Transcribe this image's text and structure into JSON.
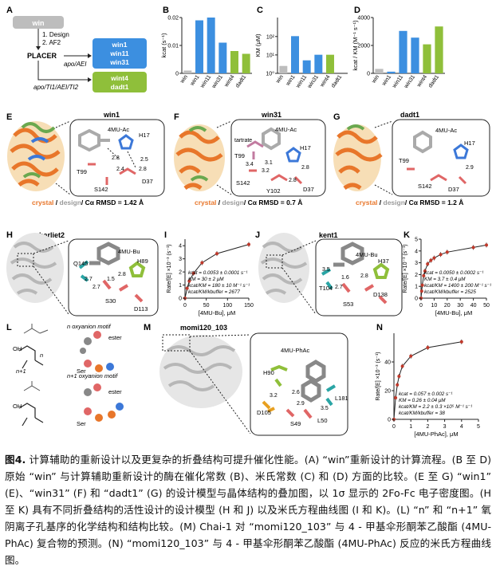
{
  "panels": {
    "A": {
      "letter": "A",
      "win": "win",
      "step1": "1. Design",
      "step2": "2. AF2",
      "placer": "PLACER",
      "apo1": "apo/AEI",
      "apo2": "apo/TI1/AEI/TI2",
      "group1": [
        "win1",
        "win11",
        "win31"
      ],
      "group2": [
        "wint4",
        "dadt1"
      ]
    },
    "B": {
      "letter": "B"
    },
    "C": {
      "letter": "C"
    },
    "D": {
      "letter": "D"
    },
    "E": {
      "letter": "E",
      "title": "win1",
      "rmsd": "/ Cα RMSD = 1.42 Å",
      "labels": [
        "4MU-Ac",
        "H17",
        "T99",
        "S142",
        "D37",
        "2.8",
        "2.5",
        "2.4",
        "2.8"
      ]
    },
    "F": {
      "letter": "F",
      "title": "win31",
      "rmsd": "/ Cα RMSD = 0.7 Å",
      "labels": [
        "4MU-Ac",
        "tartrate",
        "H17",
        "T99",
        "3.4",
        "3.1",
        "3.2",
        "2.8",
        "S142",
        "Y102",
        "D37",
        "2.8"
      ]
    },
    "G": {
      "letter": "G",
      "title": "dadt1",
      "rmsd": "/ Cα RMSD = 1.2 Å",
      "labels": [
        "4MU-Ac",
        "H17",
        "T99",
        "S142",
        "D37",
        "2.9"
      ]
    },
    "H": {
      "letter": "H",
      "title": "charliet2",
      "labels": [
        "4MU-Bu",
        "Q145",
        "H89",
        "S30",
        "D113",
        "2.7",
        "1.5",
        "2.8",
        "2.7"
      ]
    },
    "J": {
      "letter": "J",
      "title": "kent1",
      "labels": [
        "4MU-Bu",
        "H37",
        "T104",
        "S53",
        "D138",
        "3.5",
        "1.6",
        "2.8",
        "2.7"
      ]
    },
    "L": {
      "letter": "L",
      "n_motif": "n oxyanion motif",
      "n1_motif": "n+1 oxyanion motif",
      "ester": "ester",
      "ser": "Ser",
      "n": "n",
      "n1": "n+1",
      "OH": "OH"
    },
    "M": {
      "letter": "M",
      "title": "momi120_103",
      "labels": [
        "4MU-PhAc",
        "H90",
        "D105",
        "S49",
        "L50",
        "L181",
        "3.2",
        "2.6",
        "2.9",
        "3.5"
      ]
    }
  },
  "legend_words": {
    "crystal": "crystal",
    "design": "design",
    "slash": " / "
  },
  "colors": {
    "blue_box": "#3c8fe0",
    "green_box": "#8fbf3a",
    "gray_box": "#9a9a9a",
    "crystal": "#e8762a",
    "design": "#9a9a9a"
  },
  "chart_data": [
    {
      "panel": "B",
      "type": "bar",
      "categories": [
        "win",
        "win1",
        "win11",
        "win31",
        "wint4",
        "dadt1"
      ],
      "values": [
        0.001,
        0.019,
        0.02,
        0.011,
        0.008,
        0.007
      ],
      "ylabel": "kcat (s⁻¹)",
      "ylim": [
        0,
        0.02
      ],
      "yticks": [
        "0",
        "0.01",
        "0.02"
      ]
    },
    {
      "panel": "C",
      "type": "bar",
      "categories": [
        "win",
        "win1",
        "win11",
        "win31",
        "wint4",
        "dadt1"
      ],
      "values": [
        2.5,
        100,
        5,
        10,
        10,
        0.8
      ],
      "ylabel": "KM (μM)",
      "yscale": "log",
      "ylim": [
        1,
        1000
      ],
      "yticks": [
        "10⁰",
        "10¹",
        "10²"
      ]
    },
    {
      "panel": "D",
      "type": "bar",
      "categories": [
        "win",
        "win1",
        "win11",
        "win31",
        "wint4",
        "dadt1"
      ],
      "values": [
        400,
        150,
        3800,
        3200,
        2600,
        4200
      ],
      "ylabel": "kcat / KM (M⁻¹ s⁻¹)",
      "ylim": [
        0,
        5000
      ],
      "yticks": [
        "0",
        "2000",
        "4000"
      ]
    },
    {
      "panel": "I",
      "type": "scatter",
      "x": [
        0,
        5,
        10,
        20,
        40,
        75,
        150
      ],
      "y": [
        0,
        0.75,
        1.3,
        1.9,
        2.7,
        3.4,
        4.1
      ],
      "xlabel": "[4MU-Bu], μM",
      "ylabel": "Rate/[E] ×10⁻³ (s⁻¹)",
      "xlim": [
        0,
        150
      ],
      "ylim": [
        0,
        4.5
      ],
      "xticks": [
        "0",
        "50",
        "100",
        "150"
      ],
      "yticks": [
        "0",
        "1",
        "2",
        "3",
        "4"
      ],
      "annotation": [
        "kcat = 0.0053 ± 0.0001 s⁻¹",
        "KM = 30 ± 2 μM",
        "kcat/KM = 180 ± 10 M⁻¹ s⁻¹",
        "kcat/KM/kbuffer = 2677"
      ]
    },
    {
      "panel": "K",
      "type": "scatter",
      "x": [
        0,
        0.5,
        1,
        2,
        3,
        5,
        7.5,
        10,
        15,
        20,
        40,
        50
      ],
      "y": [
        0,
        0.6,
        1.1,
        1.9,
        2.3,
        2.9,
        3.2,
        3.4,
        3.7,
        3.9,
        4.3,
        4.5
      ],
      "xlabel": "[4MU-Bu], μM",
      "ylabel": "Rate/[E] ×10⁻³ (s⁻¹)",
      "xlim": [
        0,
        50
      ],
      "ylim": [
        0,
        5
      ],
      "xticks": [
        "0",
        "10",
        "20",
        "30",
        "40",
        "50"
      ],
      "yticks": [
        "0",
        "1",
        "2",
        "3",
        "4",
        "5"
      ],
      "annotation": [
        "kcat = 0.0050 ± 0.0002 s⁻¹",
        "KM = 3.7 ± 0.4 μM",
        "kcat/KM = 1400 ± 200 M⁻¹ s⁻¹",
        "kcat/KM/kbuffer = 2525"
      ]
    },
    {
      "panel": "N",
      "type": "scatter",
      "x": [
        0,
        0.1,
        0.2,
        0.3,
        0.5,
        1,
        2,
        4
      ],
      "y": [
        0,
        15,
        24,
        30,
        37,
        44,
        50,
        54
      ],
      "xlabel": "[4MU-PhAc], μM",
      "ylabel": "Rate/[E] ×10⁻³ (s⁻¹)",
      "xlim": [
        0,
        5
      ],
      "ylim": [
        0,
        60
      ],
      "xticks": [
        "0",
        "1",
        "2",
        "3",
        "4",
        "5"
      ],
      "yticks": [
        "0",
        "20",
        "40"
      ],
      "annotation": [
        "kcat = 0.057 ± 0.002 s⁻¹",
        "KM = 0.26 ± 0.04 μM",
        "kcat/KM = 2.2 ± 0.3 ×10⁵ M⁻¹ s⁻¹",
        "kcat/KM/kbuffer = 38"
      ]
    }
  ],
  "caption": {
    "fig": "图4.",
    "text": " 计算辅助的重新设计以及更复杂的折叠结构可提升催化性能。(A) “win”重新设计的计算流程。(B 至 D) 原始 “win” 与计算辅助重新设计的酶在催化常数 (B)、米氏常数 (C) 和 (D) 方面的比较。(E 至 G) “win1” (E)、“win31” (F) 和 “dadt1” (G) 的设计模型与晶体结构的叠加图，以 1σ 显示的 2Fo-Fc 电子密度图。(H 至 K) 具有不同折叠结构的活性设计的设计模型 (H 和 J) 以及米氏方程曲线图 (I 和 K)。(L) “n” 和 “n+1” 氧阴离子孔基序的化学结构和结构比较。(M) Chai-1 对 “momi120_103” 与 4 - 甲基伞形酮苯乙酸酯 (4MU-PhAc) 复合物的预测。(N) “momi120_103” 与 4 - 甲基伞形酮苯乙酸酯 (4MU-PhAc) 反应的米氏方程曲线图。"
  }
}
